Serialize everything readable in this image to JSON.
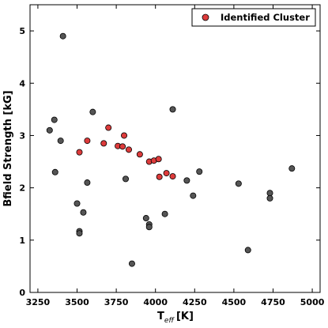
{
  "chart_data": {
    "type": "scatter",
    "xlabel": "T",
    "xlabel_sub": "eff",
    "xlabel_unit": "[K]",
    "ylabel": "Bfield Strength [kG]",
    "xlim": [
      3200,
      5050
    ],
    "ylim": [
      0,
      5.5
    ],
    "x_ticks": [
      3250,
      3500,
      3750,
      4000,
      4250,
      4500,
      4750,
      5000
    ],
    "y_ticks": [
      0,
      1,
      2,
      3,
      4,
      5
    ],
    "grid": false,
    "legend_position": "top-right",
    "colors": {
      "background": "#555555",
      "cluster": "#dd3b3b",
      "edge": "#000000"
    },
    "series": [
      {
        "key": "background",
        "points": [
          [
            3410,
            4.9
          ],
          [
            3325,
            3.1
          ],
          [
            3355,
            3.3
          ],
          [
            3395,
            2.9
          ],
          [
            3360,
            2.3
          ],
          [
            3600,
            3.45
          ],
          [
            3500,
            1.7
          ],
          [
            3540,
            1.53
          ],
          [
            3565,
            2.1
          ],
          [
            3515,
            1.17
          ],
          [
            3515,
            1.13
          ],
          [
            3810,
            2.17
          ],
          [
            3850,
            0.55
          ],
          [
            3940,
            1.42
          ],
          [
            3960,
            1.3
          ],
          [
            3960,
            1.25
          ],
          [
            4060,
            1.5
          ],
          [
            4110,
            3.5
          ],
          [
            4200,
            2.14
          ],
          [
            4240,
            1.85
          ],
          [
            4280,
            2.31
          ],
          [
            4530,
            2.08
          ],
          [
            4590,
            0.81
          ],
          [
            4730,
            1.9
          ],
          [
            4730,
            1.8
          ],
          [
            4870,
            2.37
          ]
        ]
      },
      {
        "key": "cluster",
        "name": "Identified Cluster",
        "points": [
          [
            3515,
            2.68
          ],
          [
            3565,
            2.9
          ],
          [
            3670,
            2.85
          ],
          [
            3700,
            3.15
          ],
          [
            3760,
            2.8
          ],
          [
            3790,
            2.79
          ],
          [
            3800,
            3.0
          ],
          [
            3830,
            2.73
          ],
          [
            3900,
            2.64
          ],
          [
            3960,
            2.5
          ],
          [
            3990,
            2.52
          ],
          [
            4020,
            2.55
          ],
          [
            4025,
            2.21
          ],
          [
            4070,
            2.28
          ],
          [
            4110,
            2.22
          ]
        ]
      }
    ]
  }
}
